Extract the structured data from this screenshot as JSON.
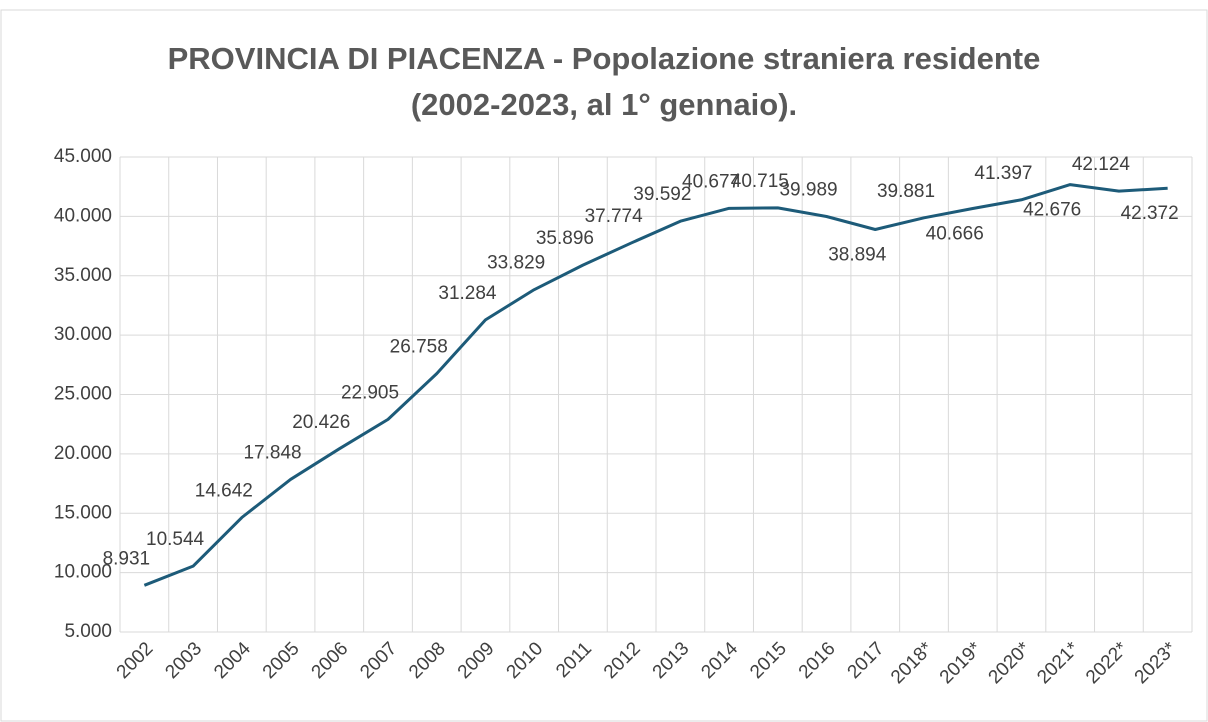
{
  "chart_data": {
    "type": "line",
    "title": "PROVINCIA DI PIACENZA - Popolazione straniera residente (2002-2023, al 1° gennaio).",
    "categories": [
      "2002",
      "2003",
      "2004",
      "2005",
      "2006",
      "2007",
      "2008",
      "2009",
      "2010",
      "2011",
      "2012",
      "2013",
      "2014",
      "2015",
      "2016",
      "2017",
      "2018*",
      "2019*",
      "2020*",
      "2021*",
      "2022*",
      "2023*"
    ],
    "series": [
      {
        "name": "Popolazione straniera",
        "color": "#1d5b79",
        "values": [
          8931,
          10544,
          14642,
          17848,
          20426,
          22905,
          26758,
          31284,
          33829,
          35896,
          37774,
          39592,
          40677,
          40715,
          39989,
          38894,
          39881,
          40666,
          41397,
          42676,
          42124,
          42372
        ],
        "value_labels": [
          "8.931",
          "10.544",
          "14.642",
          "17.848",
          "20.426",
          "22.905",
          "26.758",
          "31.284",
          "33.829",
          "35.896",
          "37.774",
          "39.592",
          "40.677",
          "40.715",
          "39.989",
          "38.894",
          "39.881",
          "40.666",
          "41.397",
          "42.676",
          "42.124",
          "42.372"
        ]
      }
    ],
    "ylim": [
      5000,
      45000
    ],
    "yticks": [
      {
        "value": 5000,
        "label": "5.000"
      },
      {
        "value": 10000,
        "label": "10.000"
      },
      {
        "value": 15000,
        "label": "15.000"
      },
      {
        "value": 20000,
        "label": "20.000"
      },
      {
        "value": 25000,
        "label": "25.000"
      },
      {
        "value": 30000,
        "label": "30.000"
      },
      {
        "value": 35000,
        "label": "35.000"
      },
      {
        "value": 40000,
        "label": "40.000"
      },
      {
        "value": 45000,
        "label": "45.000"
      }
    ],
    "grid": true
  }
}
